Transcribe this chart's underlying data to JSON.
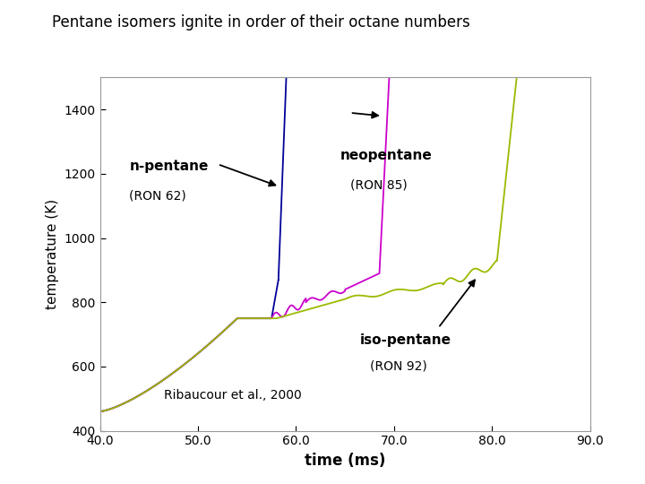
{
  "title": "Pentane isomers ignite in order of their octane numbers",
  "xlabel": "time (ms)",
  "ylabel": "temperature (K)",
  "xlim": [
    40.0,
    90.0
  ],
  "ylim": [
    400,
    1500
  ],
  "xticks": [
    40.0,
    50.0,
    60.0,
    70.0,
    80.0,
    90.0
  ],
  "yticks": [
    400,
    600,
    800,
    1000,
    1200,
    1400
  ],
  "bg_color": "#ffffff",
  "n_pentane_color": "#000099",
  "neopentane_color": "#cc00cc",
  "iso_pentane_color": "#99bb00",
  "annotations": {
    "n_pentane_label": "n-pentane",
    "n_pentane_ron": "(RON 62)",
    "neopentane_label": "neopentane",
    "neopentane_ron": "(RON 85)",
    "iso_pentane_label": "iso-pentane",
    "iso_pentane_ron": "(RON 92)",
    "reference": "Ribaucour et al., 2000"
  }
}
